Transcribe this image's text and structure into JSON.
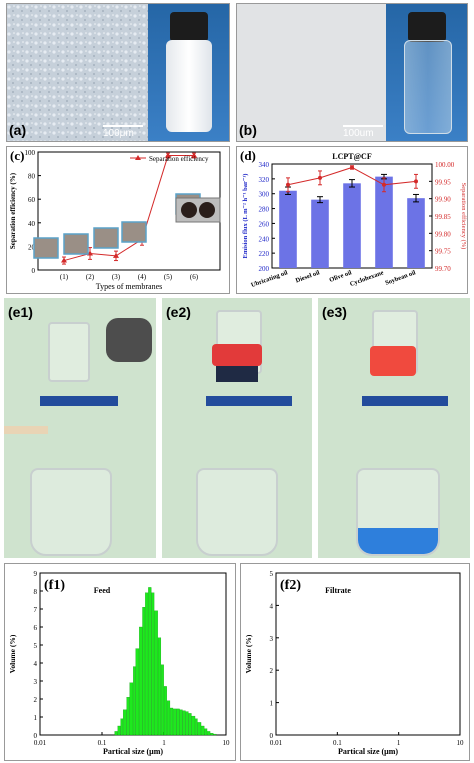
{
  "panel_a": {
    "label": "(a)",
    "scale": "100μm"
  },
  "panel_b": {
    "label": "(b)",
    "scale": "100um"
  },
  "panel_e1": {
    "label": "(e1)"
  },
  "panel_e2": {
    "label": "(e2)"
  },
  "panel_e3": {
    "label": "(e3)"
  },
  "colors": {
    "red": "#d42a2a",
    "blue_bar": "#6c73e6",
    "green_bar": "#1ee81e",
    "wall": "#cfe3ce"
  },
  "chart_data": [
    {
      "id": "c",
      "type": "line",
      "panel_label": "(c)",
      "title": "",
      "xlabel": "Types of membranes",
      "ylabel": "Separation efficiency (%)",
      "legend": "Separation efficiency",
      "legend_position": "top-right",
      "categories": [
        "(1)",
        "(2)",
        "(3)",
        "(4)",
        "(5)",
        "(6)"
      ],
      "values": [
        8,
        14,
        12,
        26,
        97,
        97
      ],
      "errors": [
        3,
        5,
        4,
        5,
        2,
        2
      ],
      "ylim": [
        0,
        100
      ],
      "yticks": [
        0,
        20,
        40,
        60,
        80,
        100
      ]
    },
    {
      "id": "d",
      "type": "bar",
      "panel_label": "(d)",
      "title": "LCPT@CF",
      "categories": [
        "Ubricating oil",
        "Diesel oil",
        "Olive oil",
        "Cyclohexane",
        "Soybean oil"
      ],
      "ylabel": "Emision flux (L m⁻² h⁻¹ bar⁻¹)",
      "ylabel2": "Separation efficiency (%)",
      "series": [
        {
          "name": "Flux",
          "values": [
            304,
            292,
            314,
            323,
            294
          ],
          "errors": [
            5,
            4,
            5,
            3,
            5
          ]
        },
        {
          "name": "Efficiency",
          "values": [
            99.94,
            99.96,
            99.99,
            99.94,
            99.95
          ],
          "errors": [
            0.02,
            0.02,
            0.005,
            0.02,
            0.02
          ]
        }
      ],
      "ylim": [
        200,
        340
      ],
      "yticks": [
        200,
        220,
        240,
        260,
        280,
        300,
        320,
        340
      ],
      "ylim2": [
        99.7,
        100.0
      ],
      "yticks2": [
        "99.70",
        "99.75",
        "99.80",
        "99.85",
        "99.90",
        "99.95",
        "100.00"
      ]
    },
    {
      "id": "f1",
      "type": "bar",
      "panel_label": "(f1)",
      "title": "Feed",
      "xlabel": "Partical size (μm)",
      "ylabel": "Volume (%)",
      "x_scale": "log",
      "xlim": [
        0.01,
        10
      ],
      "xticks": [
        "0.01",
        "0.1",
        "1",
        "10"
      ],
      "ylim": [
        0,
        9
      ],
      "yticks": [
        0,
        1,
        2,
        3,
        4,
        5,
        6,
        7,
        8,
        9
      ],
      "x": [
        0.16,
        0.18,
        0.2,
        0.22,
        0.25,
        0.28,
        0.32,
        0.35,
        0.4,
        0.45,
        0.5,
        0.56,
        0.63,
        0.7,
        0.8,
        0.9,
        1.0,
        1.12,
        1.26,
        1.41,
        1.6,
        1.8,
        2.0,
        2.24,
        2.5,
        2.8,
        3.2,
        3.5,
        4.0,
        4.5,
        5.0,
        5.6,
        6.3
      ],
      "values": [
        0.2,
        0.5,
        0.9,
        1.4,
        2.1,
        2.9,
        3.8,
        4.8,
        6.0,
        7.1,
        7.9,
        8.2,
        7.9,
        6.9,
        5.4,
        3.9,
        2.7,
        1.9,
        1.5,
        1.45,
        1.45,
        1.4,
        1.35,
        1.3,
        1.2,
        1.05,
        0.9,
        0.7,
        0.5,
        0.35,
        0.2,
        0.1,
        0.05
      ]
    },
    {
      "id": "f2",
      "type": "bar",
      "panel_label": "(f2)",
      "title": "Filtrate",
      "xlabel": "Partical size (μm)",
      "ylabel": "Volume (%)",
      "x_scale": "log",
      "xlim": [
        0.01,
        10
      ],
      "xticks": [
        "0.01",
        "0.1",
        "1",
        "10"
      ],
      "ylim": [
        0,
        5
      ],
      "yticks": [
        0,
        1,
        2,
        3,
        4,
        5
      ],
      "values": []
    }
  ]
}
